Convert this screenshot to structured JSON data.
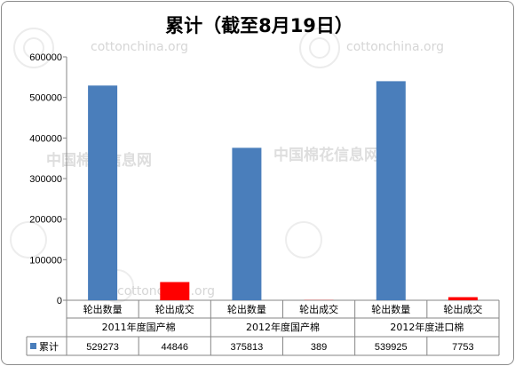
{
  "watermarks": {
    "site_top_left": "cottonchina.org",
    "site_top_right": "cottonchina.org",
    "site_lower": "cottonchina.org",
    "brand_left": "中国棉花信息网",
    "brand_right": "中国棉花信息网"
  },
  "chart_data": {
    "type": "bar",
    "title": "累计（截至8月19日）",
    "xlabel": "",
    "ylabel": "",
    "ylim": [
      0,
      600000
    ],
    "yticks": [
      "600000",
      "500000",
      "400000",
      "300000",
      "200000",
      "100000",
      "0"
    ],
    "yticks_values": [
      600000,
      500000,
      400000,
      300000,
      200000,
      100000,
      0
    ],
    "groups": [
      "2011年度国产棉",
      "2012年度国产棉",
      "2012年度进口棉"
    ],
    "subcategories": [
      "轮出数量",
      "轮出成交"
    ],
    "categories": [
      "轮出数量",
      "轮出成交",
      "轮出数量",
      "轮出成交",
      "轮出数量",
      "轮出成交"
    ],
    "series": [
      {
        "name": "累计",
        "values": [
          529273,
          44846,
          375813,
          389,
          539925,
          7753
        ],
        "value_labels": [
          "529273",
          "44846",
          "375813",
          "389",
          "539925",
          "7753"
        ]
      }
    ],
    "colors": {
      "quantity": "#4a7ebb",
      "deal": "#ff0000",
      "legend": "#4a7ebb"
    },
    "grid": false,
    "legend": "bottom-left data table"
  }
}
